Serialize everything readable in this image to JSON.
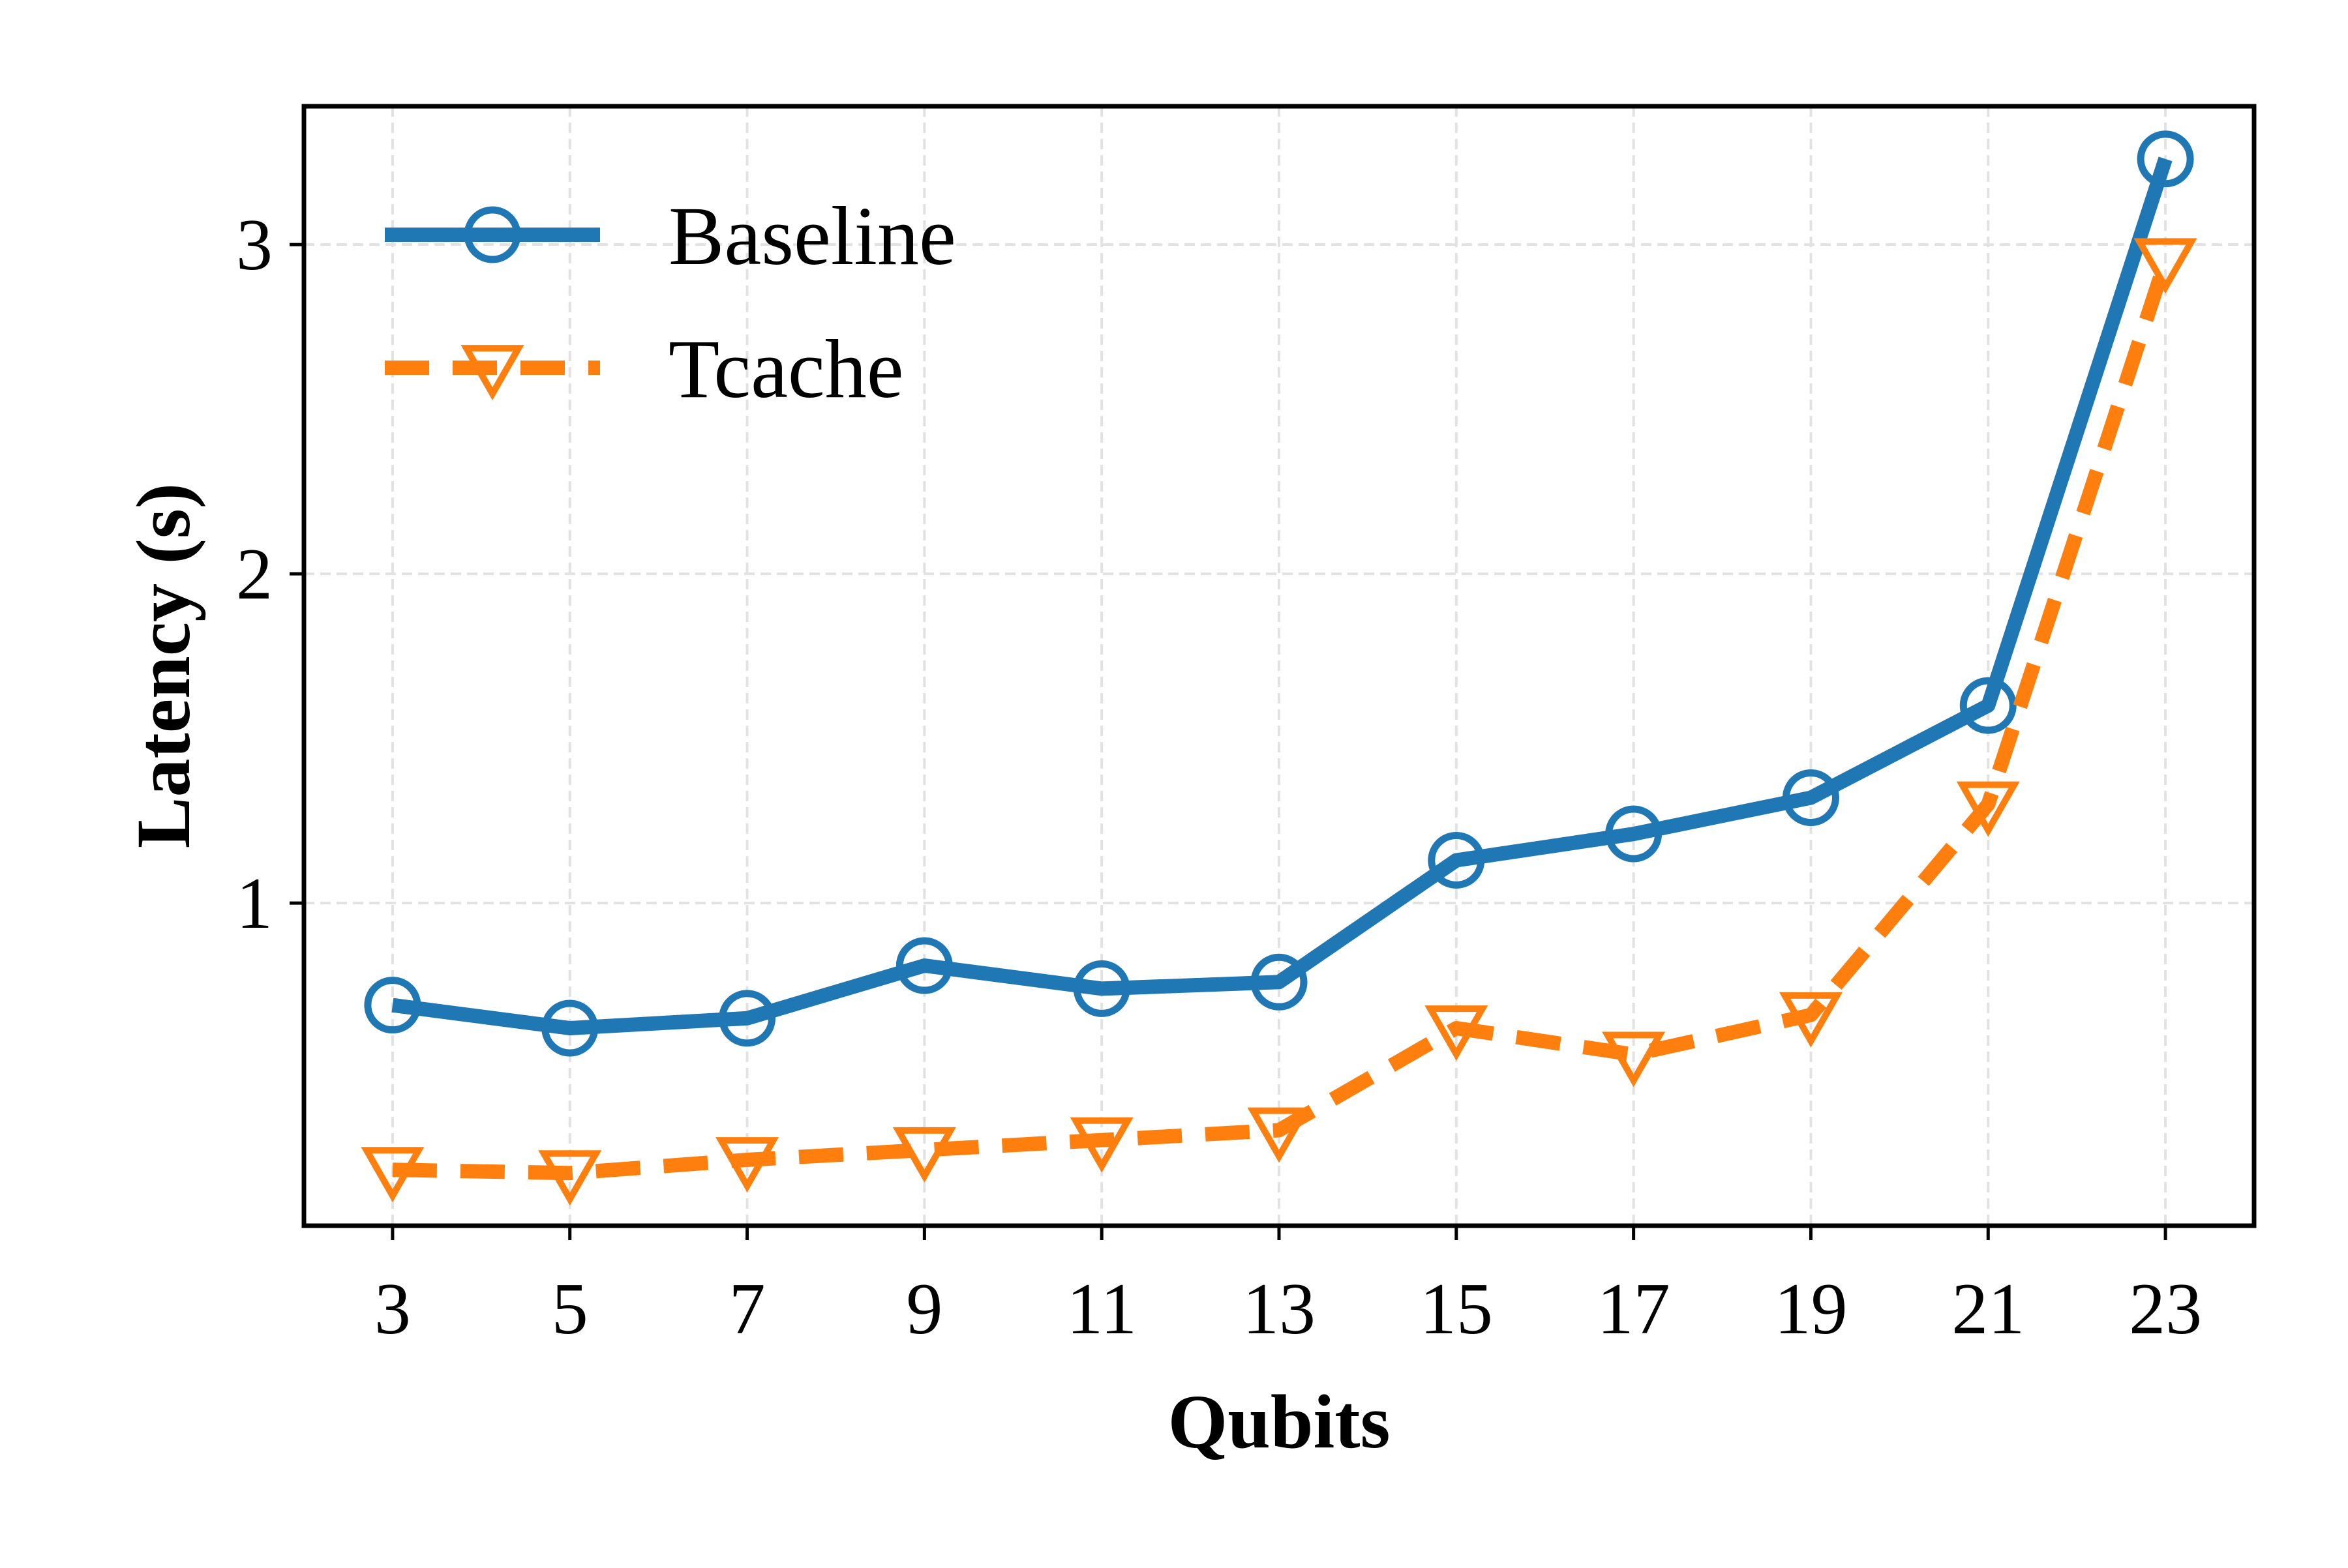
{
  "chart_data": {
    "type": "line",
    "title": "",
    "xlabel": "Qubits",
    "ylabel": "Latency (s)",
    "x": [
      3,
      5,
      7,
      9,
      11,
      13,
      15,
      17,
      19,
      21,
      23
    ],
    "xlim": [
      2,
      24
    ],
    "ylim": [
      0.02,
      3.42
    ],
    "xticks": [
      "3",
      "5",
      "7",
      "9",
      "11",
      "13",
      "15",
      "17",
      "19",
      "21",
      "23"
    ],
    "yticks": [
      {
        "value": 1,
        "label": "1"
      },
      {
        "value": 2,
        "label": "2"
      },
      {
        "value": 3,
        "label": "3"
      }
    ],
    "grid": true,
    "legend_position": "top-left",
    "series": [
      {
        "name": "Baseline",
        "color": "#1f77b4",
        "line_style": "solid",
        "marker": "circle",
        "values": [
          0.69,
          0.62,
          0.65,
          0.81,
          0.74,
          0.76,
          1.13,
          1.21,
          1.32,
          1.6,
          3.26
        ]
      },
      {
        "name": "Tcache",
        "color": "#ff7f0e",
        "line_style": "dashed",
        "marker": "triangle-down",
        "values": [
          0.19,
          0.18,
          0.22,
          0.25,
          0.28,
          0.31,
          0.62,
          0.54,
          0.66,
          1.3,
          2.95
        ]
      }
    ]
  }
}
